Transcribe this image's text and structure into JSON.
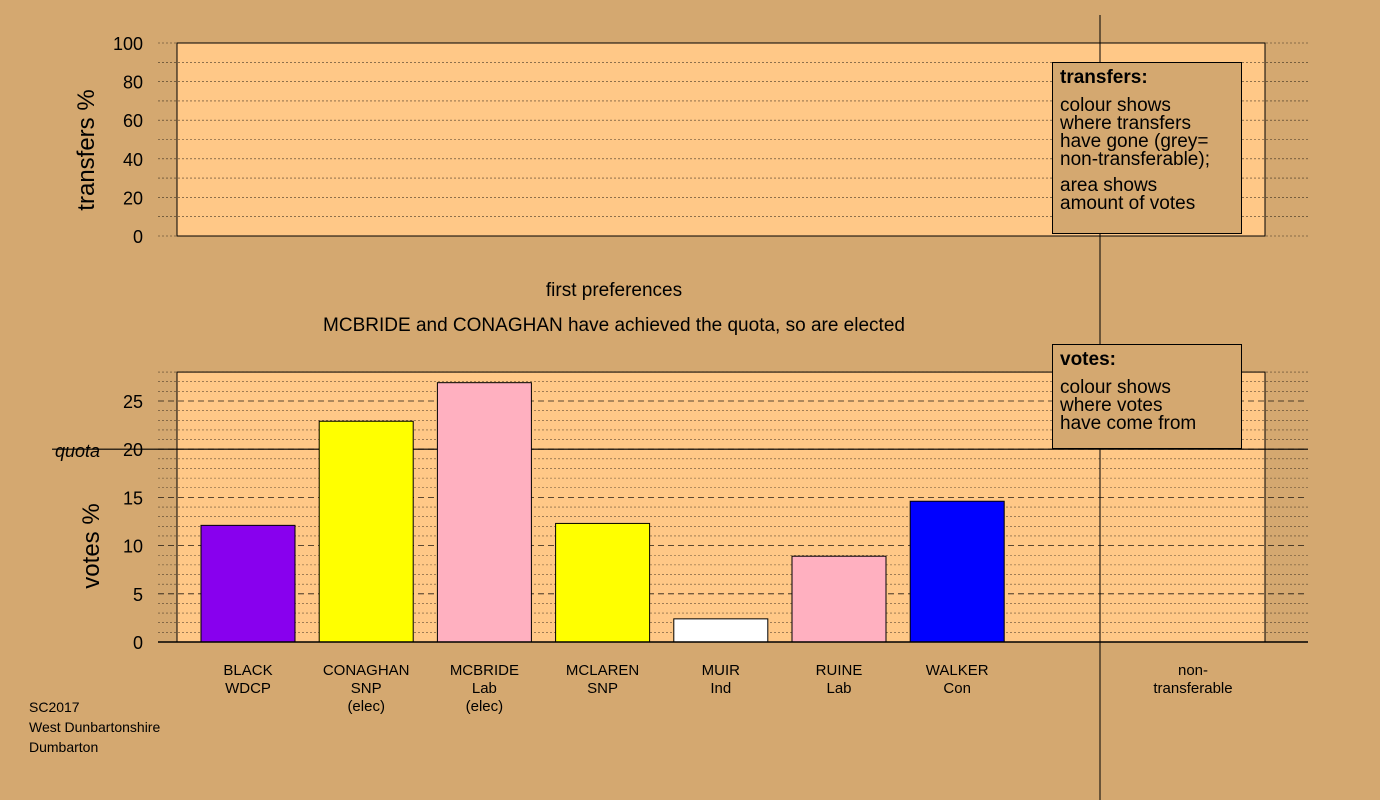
{
  "chart_data": [
    {
      "type": "bar",
      "ylabel": "transfers %",
      "ylim": [
        0,
        100
      ],
      "yticks": [
        0,
        20,
        40,
        60,
        80,
        100
      ],
      "values": []
    },
    {
      "type": "bar",
      "ylabel": "votes %",
      "ylim": [
        0,
        28
      ],
      "yticks": [
        0,
        5,
        10,
        15,
        20,
        25
      ],
      "quota": 20,
      "quota_label": "quota",
      "categories": [
        {
          "name": "BLACK",
          "party": "WDCP",
          "status": ""
        },
        {
          "name": "CONAGHAN",
          "party": "SNP",
          "status": "(elec)"
        },
        {
          "name": "MCBRIDE",
          "party": "Lab",
          "status": "(elec)"
        },
        {
          "name": "MCLAREN",
          "party": "SNP",
          "status": ""
        },
        {
          "name": "MUIR",
          "party": "Ind",
          "status": ""
        },
        {
          "name": "RUINE",
          "party": "Lab",
          "status": ""
        },
        {
          "name": "WALKER",
          "party": "Con",
          "status": ""
        },
        {
          "name": "non-",
          "party": "transferable",
          "status": ""
        }
      ],
      "values": [
        12.1,
        22.9,
        26.9,
        12.3,
        2.4,
        8.9,
        14.6,
        0
      ],
      "colors": [
        "#8800ee",
        "#ffff00",
        "#ffb0c0",
        "#ffff00",
        "#ffffff",
        "#ffb0c0",
        "#0000ff",
        "#c0c0c0"
      ],
      "plot_color": "#ffc887"
    }
  ],
  "captions": {
    "stage": "first preferences",
    "message": "MCBRIDE and CONAGHAN have achieved the quota, so are elected"
  },
  "legend_transfers": {
    "title": "transfers:",
    "lines1": [
      "colour shows",
      "where transfers",
      "have gone (grey=",
      "non-transferable);"
    ],
    "lines2": [
      "area shows",
      "amount of votes"
    ]
  },
  "legend_votes": {
    "title": "votes:",
    "lines": [
      "colour shows",
      "where votes",
      "have come from"
    ]
  },
  "footer": {
    "line1": "SC2017",
    "line2": "West Dunbartonshire",
    "line3": "Dumbarton"
  }
}
